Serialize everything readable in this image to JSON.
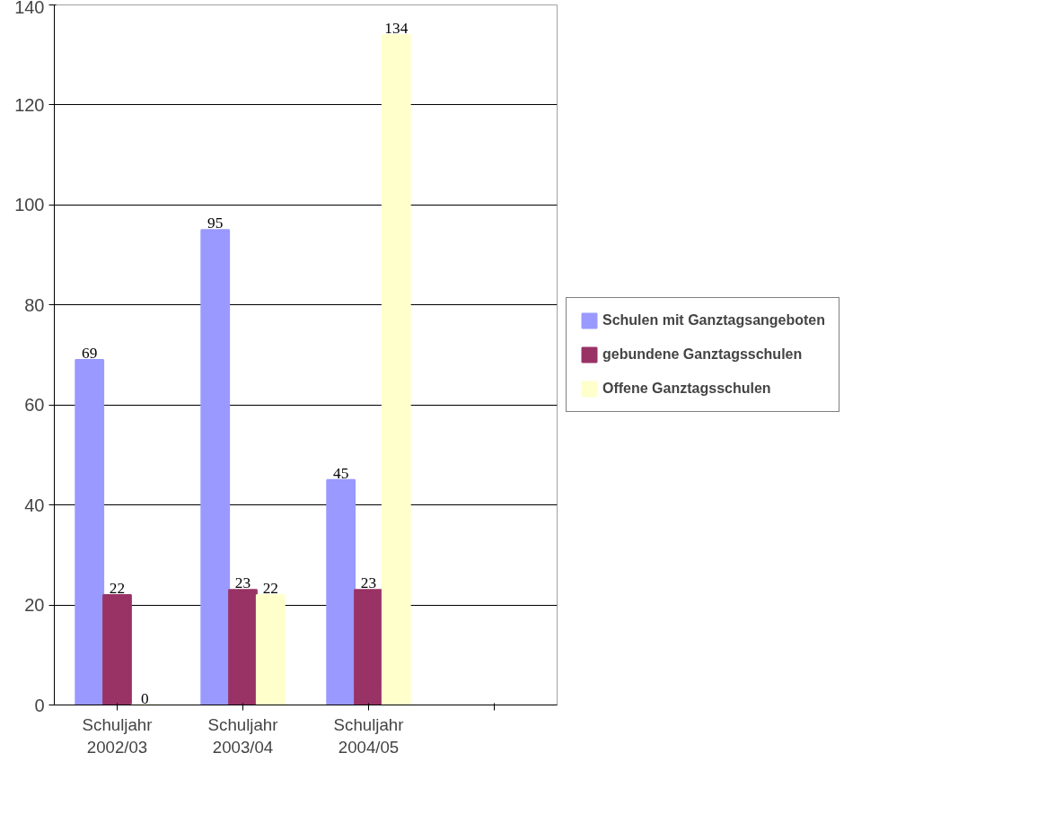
{
  "chart_data": {
    "type": "bar",
    "categories": [
      "Schuljahr 2002/03",
      "Schuljahr 2003/04",
      "Schuljahr 2004/05",
      null
    ],
    "series": [
      {
        "name": "Schulen mit Ganztagsangeboten",
        "color": "#9999ff",
        "values": [
          69,
          95,
          45,
          null
        ]
      },
      {
        "name": "gebundene Ganztagsschulen",
        "color": "#993366",
        "values": [
          22,
          23,
          23,
          null
        ]
      },
      {
        "name": "Offene Ganztagsschulen",
        "color": "#ffffcc",
        "values": [
          0,
          22,
          134,
          null
        ]
      }
    ],
    "ylim": [
      0,
      140
    ],
    "yticks": [
      0,
      20,
      40,
      60,
      80,
      100,
      120,
      140
    ],
    "grid": "y",
    "legend": "right",
    "data_labels": true
  }
}
